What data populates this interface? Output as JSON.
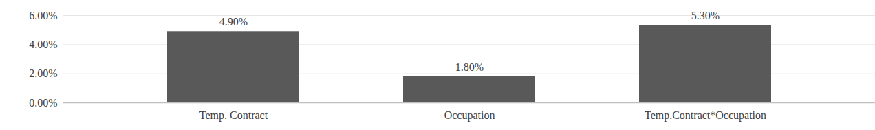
{
  "chart_data": {
    "type": "bar",
    "categories": [
      "Temp. Contract",
      "Occupation",
      "Temp.Contract*Occupation"
    ],
    "values": [
      4.9,
      1.8,
      5.3
    ],
    "value_labels": [
      "4.90%",
      "1.80%",
      "5.30%"
    ],
    "color": "#595959",
    "ylim": [
      0,
      6
    ],
    "yticks": [
      {
        "value": 0,
        "label": "0.00%"
      },
      {
        "value": 2,
        "label": "2.00%"
      },
      {
        "value": 4,
        "label": "4.00%"
      },
      {
        "value": 6,
        "label": "6.00%"
      }
    ],
    "grid": true,
    "data_labels": true
  }
}
